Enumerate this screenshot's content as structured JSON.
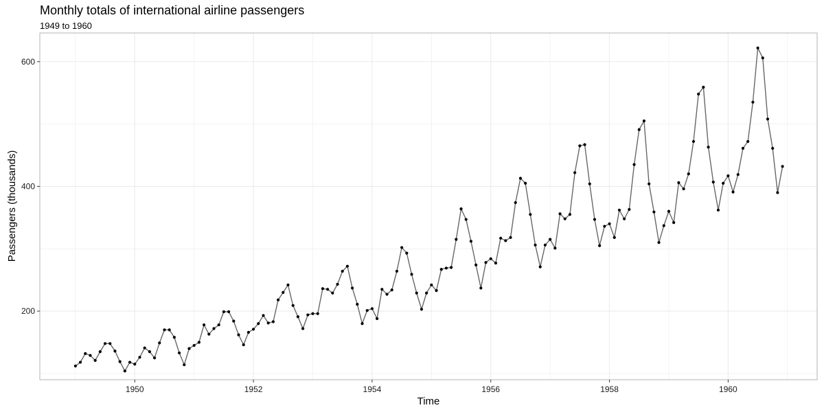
{
  "chart_data": {
    "type": "line",
    "title": "Monthly totals of international airline passengers",
    "subtitle": "1949 to 1960",
    "xlabel": "Time",
    "ylabel": "Passengers (thousands)",
    "xlim": [
      1948.4,
      1961.5
    ],
    "ylim": [
      90,
      646
    ],
    "x_ticks": [
      1950,
      1952,
      1954,
      1956,
      1958,
      1960
    ],
    "y_ticks": [
      200,
      400,
      600
    ],
    "grid": true,
    "markers": true,
    "line_color": "#666666",
    "marker_color": "#000000",
    "panel_border_color": "#b3b3b3",
    "grid_color": "#ebebeb",
    "x_start": 1949,
    "x_step": 0.0833333333,
    "values": [
      112,
      118,
      132,
      129,
      121,
      135,
      148,
      148,
      136,
      119,
      104,
      118,
      115,
      126,
      141,
      135,
      125,
      149,
      170,
      170,
      158,
      133,
      114,
      140,
      145,
      150,
      178,
      163,
      172,
      178,
      199,
      199,
      184,
      162,
      146,
      166,
      171,
      180,
      193,
      181,
      183,
      218,
      230,
      242,
      209,
      191,
      172,
      194,
      196,
      196,
      236,
      235,
      229,
      243,
      264,
      272,
      237,
      211,
      180,
      201,
      204,
      188,
      235,
      227,
      234,
      264,
      302,
      293,
      259,
      229,
      203,
      229,
      242,
      233,
      267,
      269,
      270,
      315,
      364,
      347,
      312,
      274,
      237,
      278,
      284,
      277,
      317,
      313,
      318,
      374,
      413,
      405,
      355,
      306,
      271,
      306,
      315,
      301,
      356,
      348,
      355,
      422,
      465,
      467,
      404,
      347,
      305,
      336,
      340,
      318,
      362,
      348,
      363,
      435,
      491,
      505,
      404,
      359,
      310,
      337,
      360,
      342,
      406,
      396,
      420,
      472,
      548,
      559,
      463,
      407,
      362,
      405,
      417,
      391,
      419,
      461,
      472,
      535,
      622,
      606,
      508,
      461,
      390,
      432
    ]
  }
}
